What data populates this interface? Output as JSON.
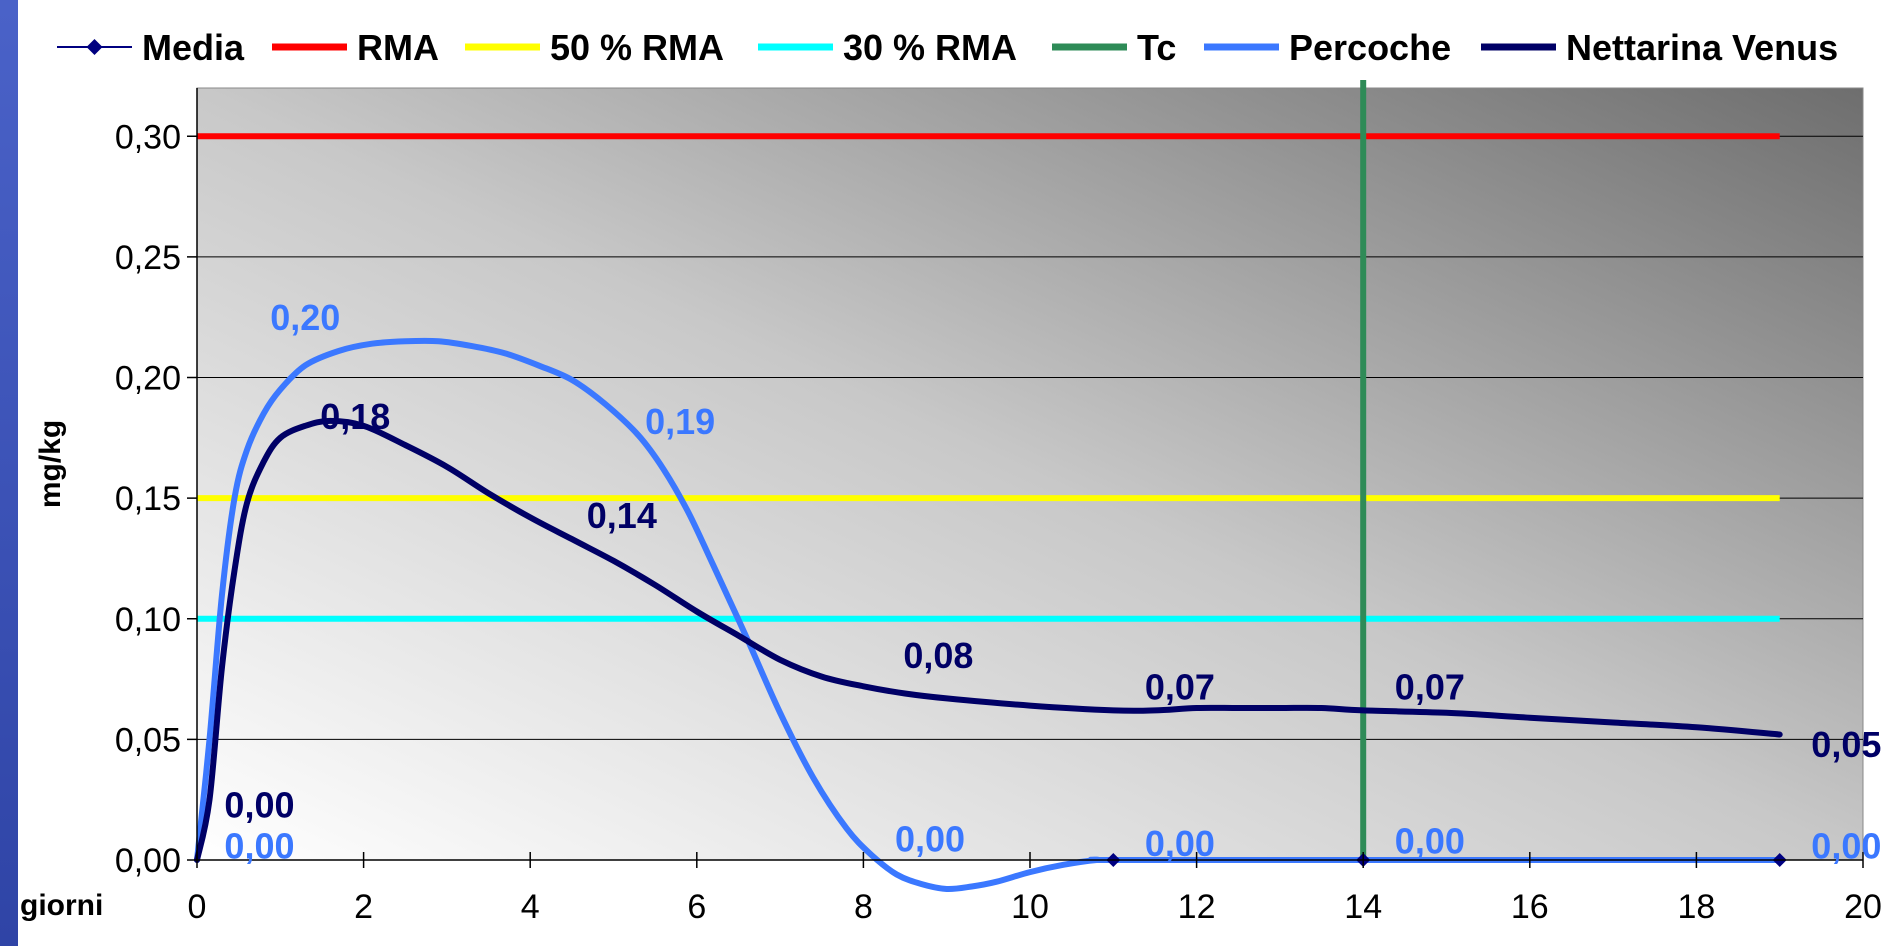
{
  "chart_data": {
    "type": "line",
    "xlabel": "giorni",
    "ylabel": "mg/kg",
    "xlim": [
      0,
      20
    ],
    "ylim": [
      0,
      0.32
    ],
    "x_ticks": [
      0,
      2,
      4,
      6,
      8,
      10,
      12,
      14,
      16,
      18,
      20
    ],
    "x_tick_labels": [
      "0",
      "2",
      "4",
      "6",
      "8",
      "10",
      "12",
      "14",
      "16",
      "18",
      "20"
    ],
    "y_ticks": [
      0,
      0.05,
      0.1,
      0.15,
      0.2,
      0.25,
      0.3
    ],
    "y_tick_labels": [
      "0,00",
      "0,05",
      "0,10",
      "0,15",
      "0,20",
      "0,25",
      "0,30"
    ],
    "grid": "horizontal",
    "legend_position": "top",
    "background": "gradient grey",
    "series": [
      {
        "name": "Media",
        "kind": "markers",
        "color": "#000080",
        "x": [
          11,
          14,
          19
        ],
        "y": [
          0,
          0,
          0
        ]
      },
      {
        "name": "RMA",
        "kind": "hline",
        "color": "#ff0000",
        "y": 0.3,
        "x": [
          0,
          19
        ]
      },
      {
        "name": "50 % RMA",
        "kind": "hline",
        "color": "#ffff00",
        "y": 0.15,
        "x": [
          0,
          19
        ]
      },
      {
        "name": "30 % RMA",
        "kind": "hline",
        "color": "#00ffff",
        "y": 0.1,
        "x": [
          0,
          19
        ]
      },
      {
        "name": "Tc",
        "kind": "vline",
        "color": "#2e8b57",
        "x": 14
      },
      {
        "name": "Percoche",
        "kind": "curve",
        "color": "#3b78ff",
        "x": [
          0,
          0.15,
          0.3,
          0.45,
          0.6,
          0.8,
          1.0,
          1.3,
          1.7,
          2.1,
          2.5,
          2.9,
          3.3,
          3.7,
          4.1,
          4.5,
          4.9,
          5.3,
          5.6,
          5.9,
          6.2,
          6.6,
          7.0,
          7.4,
          7.8,
          8.1,
          8.4,
          8.7,
          9.0,
          9.3,
          9.6,
          10.0,
          10.4,
          10.8,
          11,
          14,
          19
        ],
        "y": [
          0,
          0.05,
          0.11,
          0.15,
          0.17,
          0.185,
          0.195,
          0.205,
          0.211,
          0.214,
          0.215,
          0.215,
          0.213,
          0.21,
          0.205,
          0.199,
          0.189,
          0.176,
          0.162,
          0.144,
          0.122,
          0.092,
          0.061,
          0.034,
          0.013,
          0.002,
          -0.006,
          -0.01,
          -0.012,
          -0.011,
          -0.009,
          -0.005,
          -0.002,
          0.0,
          0,
          0,
          0
        ]
      },
      {
        "name": "Nettarina Venus",
        "kind": "curve",
        "color": "#000066",
        "x": [
          0,
          0.15,
          0.3,
          0.45,
          0.6,
          0.8,
          1.0,
          1.3,
          1.6,
          2.0,
          2.5,
          3.0,
          3.5,
          4.0,
          4.5,
          5.0,
          5.5,
          6.0,
          6.5,
          7.0,
          7.5,
          8.0,
          8.5,
          9.0,
          10.0,
          11.0,
          11.5,
          12.0,
          12.5,
          13.0,
          13.5,
          14.0,
          15.0,
          16.0,
          17.0,
          18.0,
          19.0
        ],
        "y": [
          0,
          0.025,
          0.08,
          0.12,
          0.148,
          0.165,
          0.175,
          0.18,
          0.182,
          0.18,
          0.172,
          0.163,
          0.152,
          0.142,
          0.133,
          0.124,
          0.114,
          0.103,
          0.093,
          0.083,
          0.076,
          0.072,
          0.069,
          0.067,
          0.064,
          0.062,
          0.062,
          0.063,
          0.063,
          0.063,
          0.063,
          0.062,
          0.061,
          0.059,
          0.057,
          0.055,
          0.052
        ]
      }
    ],
    "data_labels": [
      {
        "text": "0,20",
        "series": "Percoche",
        "x": 1.3,
        "y": 0.225
      },
      {
        "text": "0,19",
        "series": "Percoche",
        "x": 5.8,
        "y": 0.182
      },
      {
        "text": "0,00",
        "series": "Percoche",
        "x": 0.75,
        "y": 0.006
      },
      {
        "text": "0,00",
        "series": "Percoche",
        "x": 8.8,
        "y": 0.009
      },
      {
        "text": "0,00",
        "series": "Percoche",
        "x": 11.8,
        "y": 0.007
      },
      {
        "text": "0,00",
        "series": "Percoche",
        "x": 14.8,
        "y": 0.008
      },
      {
        "text": "0,00",
        "series": "Percoche",
        "x": 19.8,
        "y": 0.006
      },
      {
        "text": "0,18",
        "series": "Nettarina Venus",
        "x": 1.9,
        "y": 0.184
      },
      {
        "text": "0,14",
        "series": "Nettarina Venus",
        "x": 5.1,
        "y": 0.143
      },
      {
        "text": "0,08",
        "series": "Nettarina Venus",
        "x": 8.9,
        "y": 0.085
      },
      {
        "text": "0,07",
        "series": "Nettarina Venus",
        "x": 11.8,
        "y": 0.072
      },
      {
        "text": "0,07",
        "series": "Nettarina Venus",
        "x": 14.8,
        "y": 0.072
      },
      {
        "text": "0,05",
        "series": "Nettarina Venus",
        "x": 19.8,
        "y": 0.048
      },
      {
        "text": "0,00",
        "series": "Nettarina Venus",
        "x": 0.75,
        "y": 0.023
      }
    ]
  }
}
